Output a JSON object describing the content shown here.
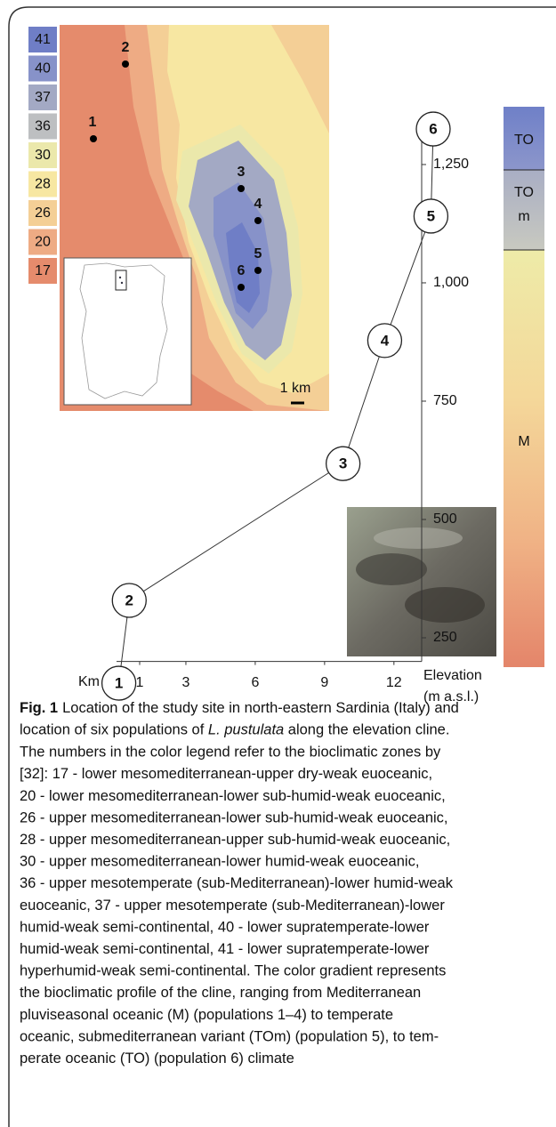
{
  "map": {
    "legend": [
      {
        "label": "41",
        "color": "#6f7ec6"
      },
      {
        "label": "40",
        "color": "#8792c9"
      },
      {
        "label": "37",
        "color": "#a3a9c4"
      },
      {
        "label": "36",
        "color": "#bdbfc1"
      },
      {
        "label": "30",
        "color": "#ebe8ab"
      },
      {
        "label": "28",
        "color": "#f7e7a2"
      },
      {
        "label": "26",
        "color": "#f4cf96"
      },
      {
        "label": "20",
        "color": "#eeab84"
      },
      {
        "label": "17",
        "color": "#e58b6c"
      }
    ],
    "points": [
      {
        "label": "1"
      },
      {
        "label": "2"
      },
      {
        "label": "3"
      },
      {
        "label": "4"
      },
      {
        "label": "5"
      },
      {
        "label": "6"
      }
    ],
    "scale_label": "1 km"
  },
  "chart_data": {
    "type": "line",
    "x": [
      0.1,
      0.55,
      9.8,
      11.6,
      13.6,
      13.7
    ],
    "values": [
      154,
      329,
      618,
      878,
      1141,
      1325
    ],
    "point_labels": [
      "1",
      "2",
      "3",
      "4",
      "5",
      "6"
    ],
    "xlabel": "Km",
    "ylabel": [
      "Elevation",
      "(m a.s.l.)"
    ],
    "xlim": [
      0,
      13.2
    ],
    "ylim": [
      200,
      1330
    ],
    "xticks": [
      1,
      3,
      6,
      9,
      12
    ],
    "yticks": [
      {
        "value": 1250,
        "label": "1,250"
      },
      {
        "value": 1000,
        "label": "1,000"
      },
      750,
      500,
      250
    ],
    "zones": [
      "TO",
      [
        "TO",
        "m"
      ],
      "M"
    ]
  },
  "caption": {
    "label": "Fig. 1",
    "lines": [
      "Location of the study site in north-eastern Sardinia (Italy) and",
      [
        "location of six populations of ",
        "L. pustulata",
        " along the elevation cline."
      ],
      "The numbers in the color legend refer to the bioclimatic zones by",
      "[32]: 17 - lower mesomediterranean-upper dry-weak euoceanic,",
      "20 - lower mesomediterranean-lower sub-humid-weak euoceanic,",
      "26 - upper mesomediterranean-lower sub-humid-weak euoceanic,",
      "28 - upper mesomediterranean-upper sub-humid-weak euoceanic,",
      "30 - upper mesomediterranean-lower humid-weak euoceanic,",
      "36 - upper mesotemperate (sub-Mediterranean)-lower humid-weak",
      "euoceanic, 37 - upper mesotemperate (sub-Mediterranean)-lower",
      "humid-weak semi-continental, 40 - lower supratemperate-lower",
      "humid-weak semi-continental, 41 - lower supratemperate-lower",
      "hyperhumid-weak semi-continental. The color gradient represents",
      "the bioclimatic profile of the cline, ranging from Mediterranean",
      "pluviseasonal oceanic (M) (populations 1–4) to temperate",
      "oceanic, submediterranean variant (TOm) (population 5), to tem-",
      "perate oceanic (TO) (population 6) climate"
    ]
  }
}
